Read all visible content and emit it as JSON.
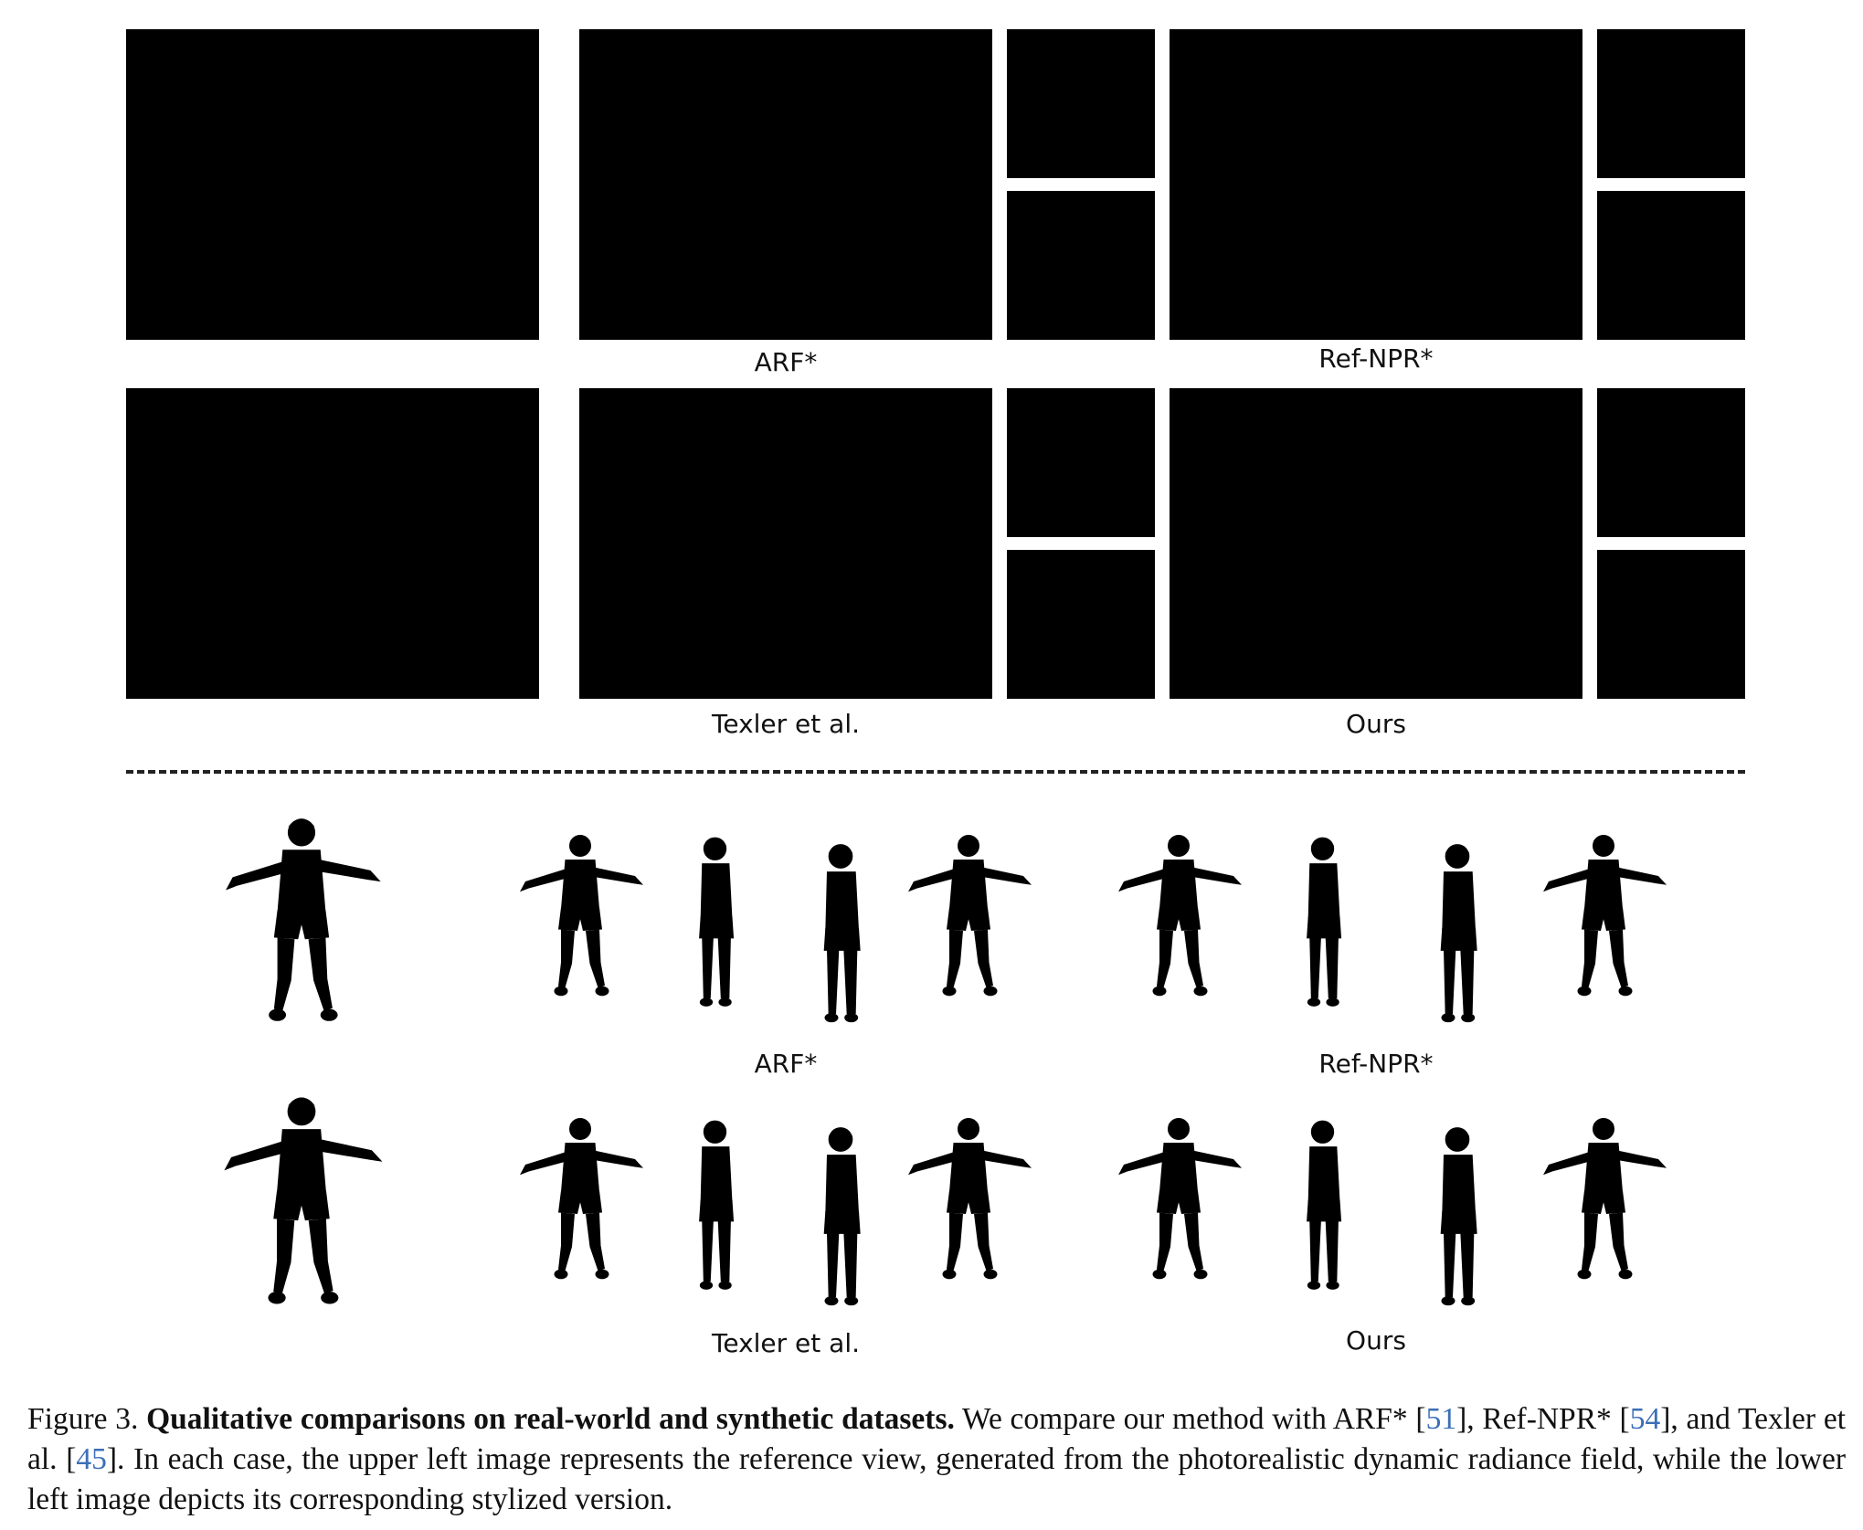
{
  "figure": {
    "real_labels": {
      "arf": "ARF*",
      "refnpr": "Ref-NPR*",
      "texler": "Texler et al.",
      "ours": "Ours"
    },
    "synthetic_labels": {
      "arf": "ARF*",
      "refnpr": "Ref-NPR*",
      "texler": "Texler et al.",
      "ours": "Ours"
    }
  },
  "caption": {
    "figure_label": "Figure 3.",
    "bold_title": "Qualitative comparisons on real-world and synthetic datasets.",
    "text_1": " We compare our method with ARF* [",
    "cite_1": "51",
    "text_2": "], Ref-NPR* [",
    "cite_2": "54",
    "text_3": "], and Texler et al. [",
    "cite_3": "45",
    "text_4": "]. In each case, the upper left image represents the reference view, generated from the photorealistic dynamic radiance field, while the lower left image depicts its corresponding stylized version."
  },
  "colors": {
    "photo_wall": "#a07850",
    "stylized_wall": "#eef0ec",
    "citation": "#3b6fb6"
  }
}
